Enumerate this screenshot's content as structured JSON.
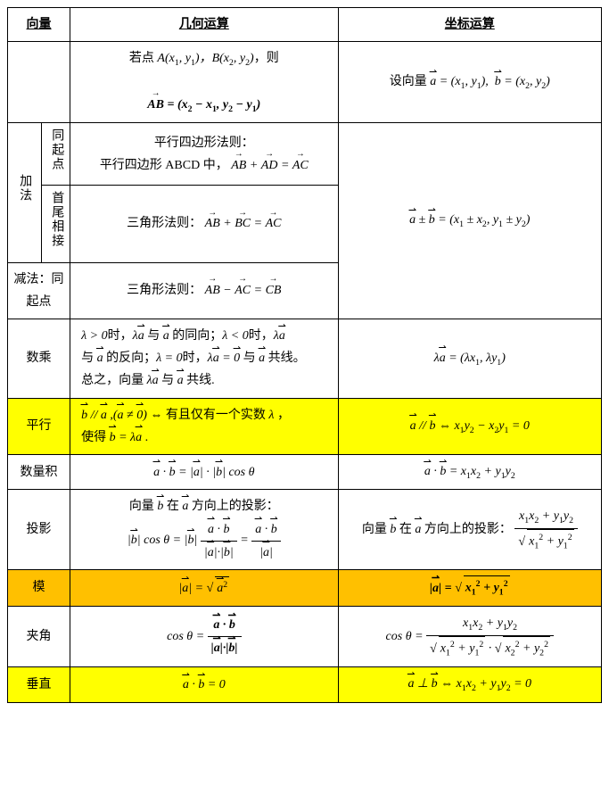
{
  "table": {
    "header": {
      "col1": "向量",
      "col3": "几何运算",
      "col4": "坐标运算"
    },
    "row_intro": {
      "geom_line1": "若点",
      "geom_pts": " A(x₁, y₁)，B(x₂, y₂)，则",
      "geom_line2_pre": "AB",
      "geom_line2_eq": " = (x₂ − x₁, y₂ − y₁)",
      "coord_pre": "设向量",
      "coord_a": "a",
      "coord_a_eq": " = (x₁, y₁),  ",
      "coord_b": "b",
      "coord_b_eq": " = (x₂, y₂)"
    },
    "addition": {
      "label": "加法",
      "sub1_label": "同起点",
      "sub1_line1": "平行四边形法则：",
      "sub1_line2_pre": "平行四边形 ABCD 中，",
      "sub1_eq": "AB + AD = AC",
      "sub2_label": "首尾相接",
      "sub2_line1": "三角形法则：",
      "sub2_eq": "AB + BC = AC",
      "coord": "a ± b = (x₁ ± x₂, y₁ ± y₂)"
    },
    "subtraction": {
      "label": "减法：同起点",
      "line1": "三角形法则：",
      "eq": "AB − AC = CB"
    },
    "scalar": {
      "label": "数乘",
      "text1": "λ > 0时，λa 与 a 的同向；λ < 0时，λa",
      "text2": "与 a 的反向；λ = 0时，λa = 0 与 a 共线。",
      "text3": "总之，向量 λa 与 a 共线.",
      "coord": "λa = (λx₁, λy₁)"
    },
    "parallel": {
      "label": "平行",
      "text1": "b // a ,(a ≠ 0) ⇔ 有且仅有一个实数 λ ，",
      "text2": "使得 b = λa .",
      "coord": "a // b ⇔ x₁y₂ − x₂y₁ = 0"
    },
    "dotproduct": {
      "label": "数量积",
      "geom": "a · b = |a| · |b| cos θ",
      "coord": "a · b = x₁x₂ + y₁y₂"
    },
    "projection": {
      "label": "投影",
      "geom_line1": "向量 b 在 a 方向上的投影：",
      "geom_eq_pre": "|b| cos θ = |b| ",
      "geom_frac1_num": "a · b",
      "geom_frac1_den": "|a| · |b|",
      "geom_eq_mid": " = ",
      "geom_frac2_num": "a · b",
      "geom_frac2_den": "|a|",
      "coord_line1": "向量 b 在 a 方向上的投影：",
      "coord_frac_num": "x₁x₂ + y₁y₂",
      "coord_frac_den_rad": "x₁² + y₁²"
    },
    "modulus": {
      "label": "模",
      "geom_pre": "|a| = ",
      "geom_rad": "a²",
      "coord_pre": "|a| = ",
      "coord_rad": "x₁² + y₁²"
    },
    "angle": {
      "label": "夹角",
      "geom_pre": "cos θ = ",
      "geom_num": "a · b",
      "geom_den": "|a| · |b|",
      "coord_pre": "cos θ = ",
      "coord_num": "x₁x₂ + y₁y₂",
      "coord_den_rad1": "x₁² + y₁²",
      "coord_den_mid": " · ",
      "coord_den_rad2": "x₂² + y₂²"
    },
    "perpendicular": {
      "label": "垂直",
      "geom": "a · b = 0",
      "coord": "a ⊥ b ⇔ x₁x₂ + y₁y₂ = 0"
    }
  },
  "colors": {
    "yellow": "#ffff00",
    "orange": "#ffc000",
    "border": "#000000",
    "bg": "#ffffff"
  }
}
